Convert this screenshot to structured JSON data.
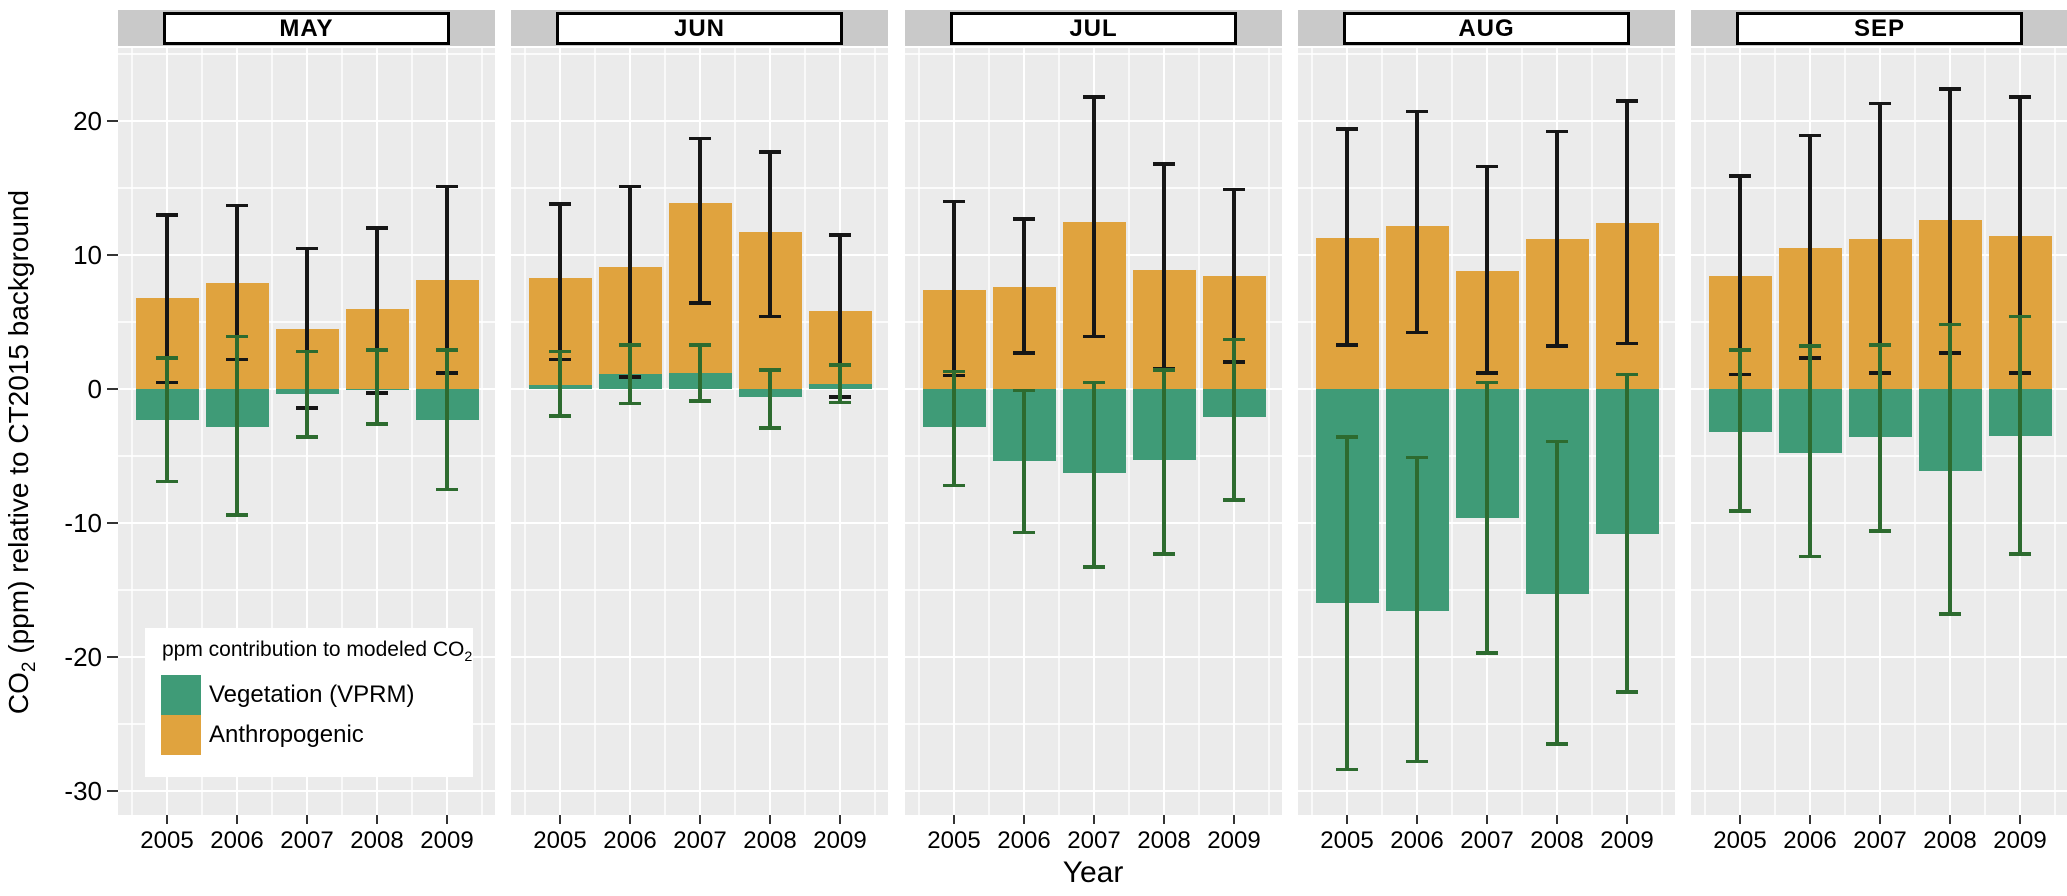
{
  "y_axis": {
    "title_co": "CO",
    "title_sub": "2",
    "title_rest": " (ppm) relative to CT2015 background",
    "ticks": [
      20,
      10,
      0,
      -10,
      -20,
      -30
    ],
    "minor_ticks": [
      25,
      15,
      5,
      -5,
      -15,
      -25
    ]
  },
  "x_axis": {
    "title": "Year",
    "categories": [
      "2005",
      "2006",
      "2007",
      "2008",
      "2009"
    ]
  },
  "legend": {
    "title_prefix": "ppm contribution to modeled CO",
    "title_sub": "2",
    "entries": [
      {
        "label": "Vegetation (VPRM)",
        "color": "#3F9B77"
      },
      {
        "label": "Anthropogenic",
        "color": "#E0A33E"
      }
    ]
  },
  "style": {
    "panel_bg": "#EBEBEB",
    "grid_color": "#FFFFFF",
    "strip_band": "#C9C9C9",
    "strip_box_bg": "#FFFFFF",
    "strip_box_border": "#000000",
    "bar_green": "#3F9B77",
    "bar_orange": "#E0A33E",
    "err_black": "#161616",
    "err_green": "#2D6B2F",
    "tick_color": "#333333",
    "text_color": "#000000"
  },
  "chart_data": {
    "type": "bar",
    "variant": "stacked-faceted-with-errorbars",
    "units": "ppm",
    "ylabel": "CO2 (ppm) relative to CT2015 background",
    "xlabel": "Year",
    "ylim": [
      -31.8,
      25.4
    ],
    "categories": [
      "2005",
      "2006",
      "2007",
      "2008",
      "2009"
    ],
    "series_names": [
      "Vegetation (VPRM)",
      "Anthropogenic"
    ],
    "facets": [
      {
        "label": "MAY",
        "vegetation": [
          -2.3,
          -2.8,
          -0.4,
          -0.1,
          -2.3
        ],
        "anthropogenic": [
          6.8,
          7.9,
          4.5,
          6.0,
          8.1
        ],
        "err_anthropogenic": [
          [
            0.5,
            13.0
          ],
          [
            2.2,
            13.7
          ],
          [
            -1.4,
            10.5
          ],
          [
            -0.3,
            12.0
          ],
          [
            1.2,
            15.1
          ]
        ],
        "err_vegetation": [
          [
            -6.9,
            2.3
          ],
          [
            -9.4,
            3.9
          ],
          [
            -3.6,
            2.8
          ],
          [
            -2.6,
            2.9
          ],
          [
            -7.5,
            2.9
          ]
        ]
      },
      {
        "label": "JUN",
        "vegetation": [
          0.3,
          1.1,
          1.2,
          -0.6,
          0.4
        ],
        "anthropogenic": [
          8.0,
          8.0,
          12.7,
          11.7,
          5.4
        ],
        "err_anthropogenic": [
          [
            2.2,
            13.8
          ],
          [
            0.9,
            15.1
          ],
          [
            6.4,
            18.7
          ],
          [
            5.4,
            17.7
          ],
          [
            -0.6,
            11.5
          ]
        ],
        "err_vegetation": [
          [
            -2.0,
            2.8
          ],
          [
            -1.1,
            3.3
          ],
          [
            -0.9,
            3.3
          ],
          [
            -2.9,
            1.4
          ],
          [
            -1.0,
            1.8
          ]
        ]
      },
      {
        "label": "JUL",
        "vegetation": [
          -2.8,
          -5.4,
          -6.3,
          -5.3,
          -2.1
        ],
        "anthropogenic": [
          7.4,
          7.6,
          12.5,
          8.9,
          8.4
        ],
        "err_anthropogenic": [
          [
            1.0,
            14.0
          ],
          [
            2.7,
            12.7
          ],
          [
            3.9,
            21.8
          ],
          [
            1.5,
            16.8
          ],
          [
            2.0,
            14.9
          ]
        ],
        "err_vegetation": [
          [
            -7.2,
            1.3
          ],
          [
            -10.7,
            -0.1
          ],
          [
            -13.3,
            0.5
          ],
          [
            -12.3,
            1.4
          ],
          [
            -8.3,
            3.7
          ]
        ]
      },
      {
        "label": "AUG",
        "vegetation": [
          -16.0,
          -16.6,
          -9.6,
          -15.3,
          -10.8
        ],
        "anthropogenic": [
          11.3,
          12.2,
          8.8,
          11.2,
          12.4
        ],
        "err_anthropogenic": [
          [
            3.3,
            19.4
          ],
          [
            4.2,
            20.7
          ],
          [
            1.2,
            16.6
          ],
          [
            3.2,
            19.2
          ],
          [
            3.4,
            21.5
          ]
        ],
        "err_vegetation": [
          [
            -28.4,
            -3.6
          ],
          [
            -27.8,
            -5.1
          ],
          [
            -19.7,
            0.5
          ],
          [
            -26.5,
            -3.9
          ],
          [
            -22.6,
            1.1
          ]
        ]
      },
      {
        "label": "SEP",
        "vegetation": [
          -3.2,
          -4.8,
          -3.6,
          -6.1,
          -3.5
        ],
        "anthropogenic": [
          8.4,
          10.5,
          11.2,
          12.6,
          11.4
        ],
        "err_anthropogenic": [
          [
            1.1,
            15.9
          ],
          [
            2.3,
            18.9
          ],
          [
            1.2,
            21.3
          ],
          [
            2.7,
            22.4
          ],
          [
            1.2,
            21.8
          ]
        ],
        "err_vegetation": [
          [
            -9.1,
            2.9
          ],
          [
            -12.5,
            3.2
          ],
          [
            -10.6,
            3.3
          ],
          [
            -16.8,
            4.8
          ],
          [
            -12.3,
            5.4
          ]
        ]
      }
    ]
  }
}
